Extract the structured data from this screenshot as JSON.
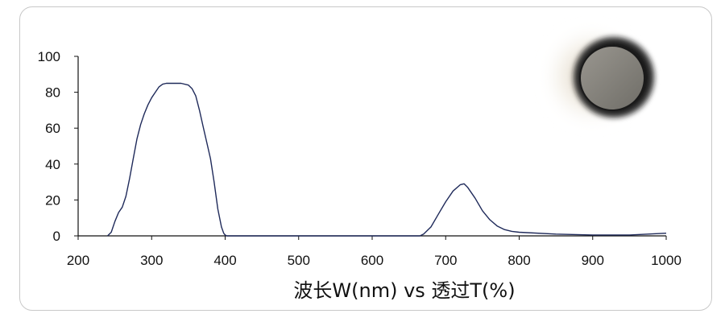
{
  "chart_data": {
    "type": "line",
    "title": "",
    "xlabel": "波长W(nm) vs 透过T(%)",
    "ylabel": "",
    "xlim": [
      200,
      1000
    ],
    "ylim": [
      0,
      100
    ],
    "xticks": [
      200,
      300,
      400,
      500,
      600,
      700,
      800,
      900,
      1000
    ],
    "yticks": [
      0,
      20,
      40,
      60,
      80,
      100
    ],
    "grid": false,
    "legend": "none",
    "line_color": "#1f2a5a",
    "series": [
      {
        "x": [
          240,
          245,
          250,
          255,
          260,
          265,
          270,
          275,
          280,
          285,
          290,
          295,
          300,
          305,
          310,
          315,
          320,
          330,
          340,
          350,
          355,
          360,
          365,
          370,
          375,
          380,
          385,
          390,
          395,
          398,
          400,
          402,
          420,
          500,
          600,
          665,
          670,
          680,
          690,
          700,
          710,
          720,
          725,
          730,
          740,
          750,
          760,
          770,
          780,
          790,
          800,
          850,
          900,
          950,
          1000
        ],
        "y": [
          0,
          2,
          8,
          13,
          16,
          22,
          32,
          43,
          54,
          62,
          68,
          73,
          77,
          80,
          83,
          84.5,
          85,
          85,
          85,
          84,
          82,
          78,
          70,
          61,
          52,
          43,
          30,
          15,
          5,
          1.5,
          0.5,
          0,
          0,
          0,
          0,
          0,
          1,
          5,
          12,
          19,
          25,
          28.5,
          29,
          27,
          21,
          14,
          9,
          5.5,
          3.5,
          2.5,
          2,
          1,
          0.5,
          0.5,
          1.5
        ]
      }
    ]
  },
  "photo": {
    "subject": "circular-filter"
  }
}
